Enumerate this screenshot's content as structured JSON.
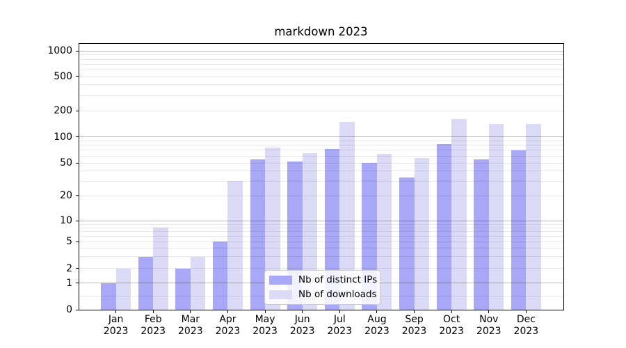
{
  "title": "markdown 2023",
  "legend": {
    "position": "lower center",
    "items": [
      {
        "label": "Nb of distinct IPs",
        "color": "#a8a8f6"
      },
      {
        "label": "Nb of downloads",
        "color": "#dbdbf8"
      }
    ]
  },
  "chart_data": {
    "type": "bar",
    "title": "markdown 2023",
    "categories": [
      "Jan 2023",
      "Feb 2023",
      "Mar 2023",
      "Apr 2023",
      "May 2023",
      "Jun 2023",
      "Jul 2023",
      "Aug 2023",
      "Sep 2023",
      "Oct 2023",
      "Nov 2023",
      "Dec 2023"
    ],
    "x_tick_months": [
      "Jan",
      "Feb",
      "Mar",
      "Apr",
      "May",
      "Jun",
      "Jul",
      "Aug",
      "Sep",
      "Oct",
      "Nov",
      "Dec"
    ],
    "x_tick_year": "2023",
    "series": [
      {
        "name": "Nb of distinct IPs",
        "color": "#a8a8f6",
        "values": [
          1,
          3,
          2,
          5,
          55,
          52,
          72,
          50,
          33,
          82,
          55,
          70
        ]
      },
      {
        "name": "Nb of downloads",
        "color": "#dbdbf8",
        "values": [
          2,
          8,
          3,
          30,
          75,
          65,
          150,
          64,
          57,
          160,
          140,
          142
        ]
      }
    ],
    "xlabel": "",
    "ylabel": "",
    "yscale": "symlog-like (log spacing above 1, zero shown at axis bottom)",
    "ylim": [
      0,
      1200
    ],
    "y_tick_labels": [
      "0",
      "1",
      "2",
      "5",
      "10",
      "20",
      "50",
      "100",
      "200",
      "500",
      "1000"
    ],
    "y_ticks": [
      0,
      1,
      2,
      5,
      10,
      20,
      50,
      100,
      200,
      500,
      1000
    ],
    "y_major_gridlines": [
      1,
      10,
      100,
      1000
    ],
    "y_minor_gridlines": [
      0.5,
      2,
      3,
      4,
      5,
      6,
      7,
      8,
      9,
      20,
      30,
      40,
      50,
      60,
      70,
      80,
      90,
      200,
      300,
      400,
      500,
      600,
      700,
      800,
      900
    ],
    "grid": "horizontal, major dark + minor light, drawn over bars",
    "legend_position": "lower center",
    "bar_width_fraction": 0.4
  }
}
